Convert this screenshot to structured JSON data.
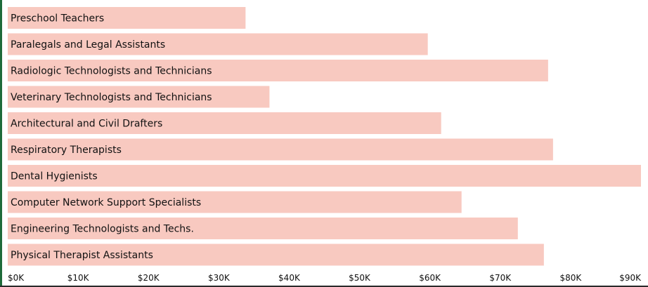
{
  "chart_data": {
    "type": "bar",
    "orientation": "horizontal",
    "categories": [
      "Preschool Teachers",
      "Paralegals and Legal Assistants",
      "Radiologic Technologists and Technicians",
      "Veterinary Technologists and Technicians",
      "Architectural and Civil Drafters",
      "Respiratory Therapists",
      "Dental Hygienists",
      "Computer Network Support Specialists",
      "Engineering Technologists and Techs.",
      "Physical Therapist Assistants"
    ],
    "values": [
      33800,
      59700,
      76800,
      37200,
      61600,
      77500,
      90000,
      64500,
      72500,
      76200
    ],
    "xlim": [
      0,
      90000
    ],
    "xticks": [
      0,
      10000,
      20000,
      30000,
      40000,
      50000,
      60000,
      70000,
      80000,
      90000
    ],
    "xtick_labels": [
      "$0K",
      "$10K",
      "$20K",
      "$30K",
      "$40K",
      "$50K",
      "$60K",
      "$70K",
      "$80K",
      "$90K"
    ],
    "bar_color": "#f8c9c0",
    "label_position": "inside-left",
    "grid": false,
    "title": "",
    "xlabel": "",
    "ylabel": ""
  },
  "colors": {
    "bar": "#f8c9c0",
    "left_rule": "#1e6b3a",
    "bottom_rule": "#2a2a2a",
    "text": "#111111"
  }
}
